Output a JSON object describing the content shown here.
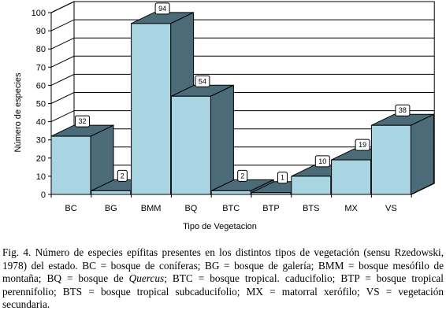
{
  "chart_data": {
    "type": "bar",
    "categories": [
      "BC",
      "BG",
      "BMM",
      "BQ",
      "BTC",
      "BTP",
      "BTS",
      "MX",
      "VS"
    ],
    "values": [
      32,
      2,
      94,
      54,
      2,
      1,
      10,
      19,
      38
    ],
    "xlabel": "Tipo de Vegetacion",
    "ylabel": "Número de especies",
    "ylim": [
      0,
      100
    ],
    "yticks": [
      0,
      10,
      20,
      30,
      40,
      50,
      60,
      70,
      80,
      90,
      100
    ],
    "grid": true,
    "style": "3d",
    "colors": {
      "bar_front": "#a9d4e2",
      "bar_side": "#4b6b78",
      "bar_top": "#4b6b78",
      "wall": "#ffffff",
      "floor": "#8f8f8f"
    }
  },
  "caption": {
    "fig_label": "Fig. 4.",
    "text_before": "Número de especies epífitas presentes en los distintos tipos de vegetación (sensu Rzedowski, 1978) del estado. BC = bosque de coníferas; BG = bosque de galería; BMM = bosque mesófilo de montaña; BQ = bosque de ",
    "italic": "Quercus",
    "text_after": "; BTC = bosque tropical. caducifolio; BTP = bosque tropical perennifolio; BTS = bosque tropical subcaducifolio; MX = matorral xerófilo; VS = vegetación secundaria."
  }
}
